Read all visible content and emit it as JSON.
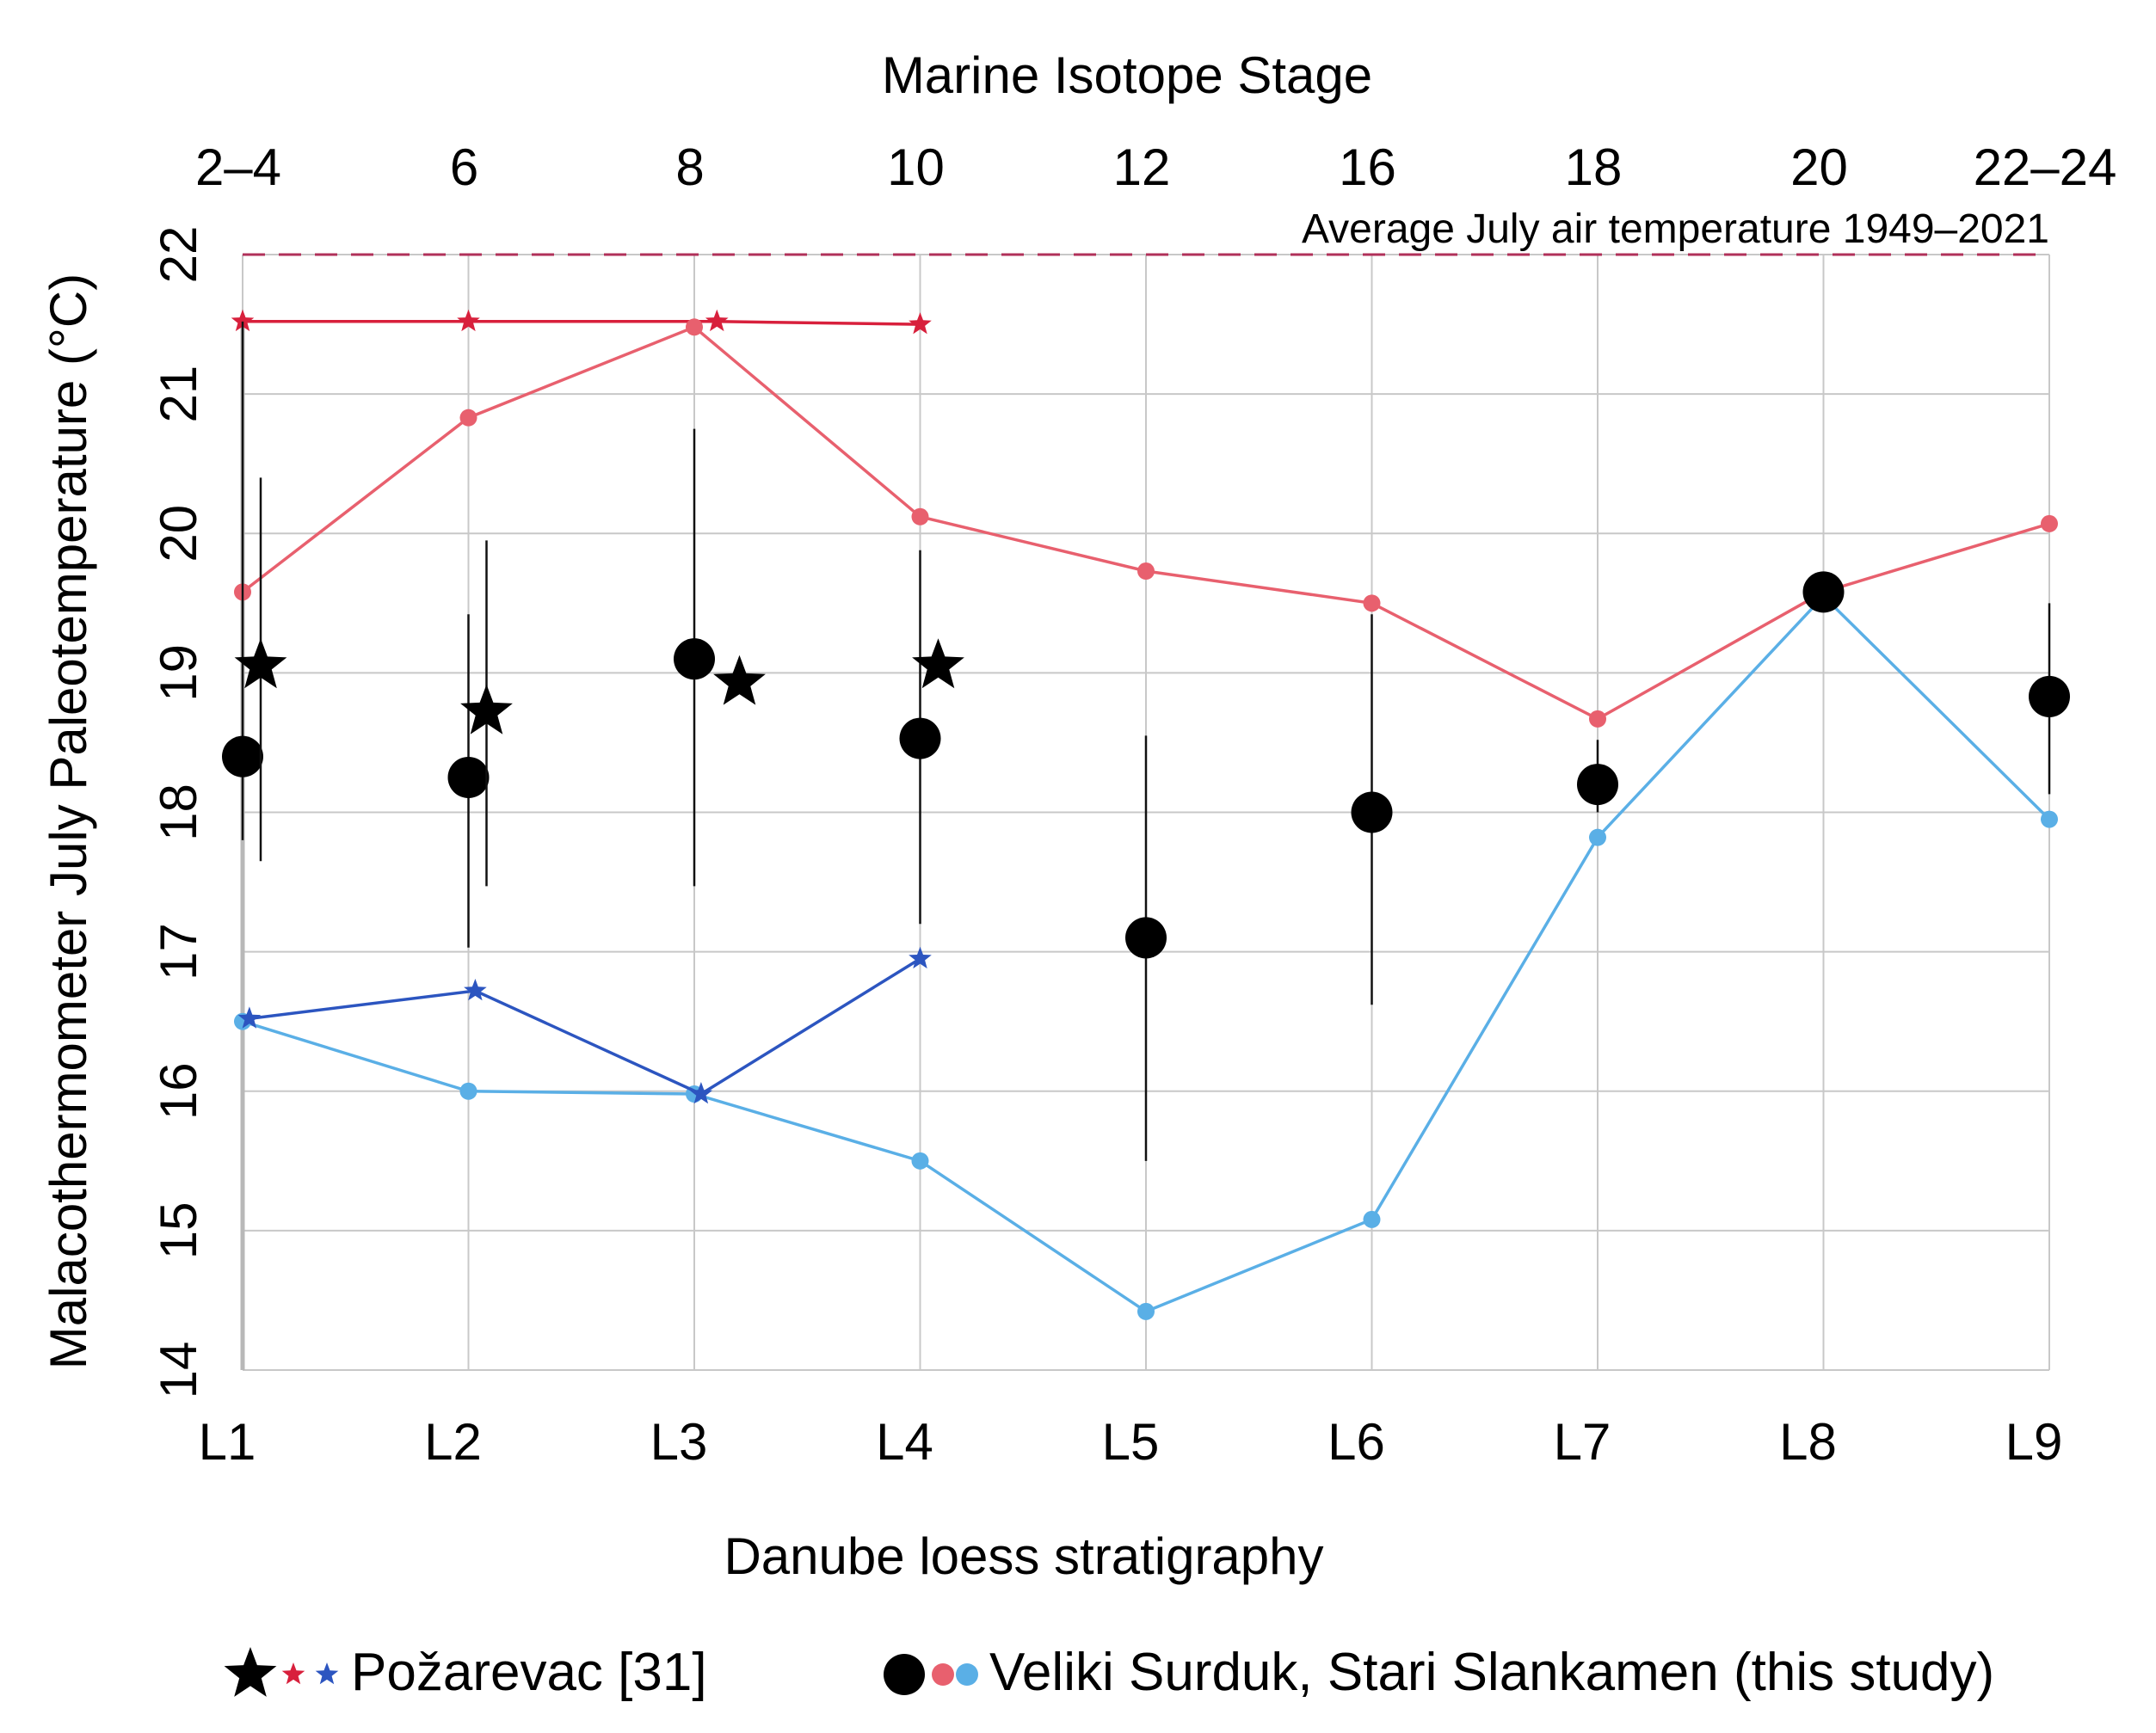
{
  "chart_data": {
    "type": "line",
    "title": "",
    "xlabel": "Danube loess stratigraphy",
    "ylabel": "Malacothermometer July Paleotemperature  (°C)",
    "top_axis_label": "Marine Isotope Stage",
    "categories": [
      "L1",
      "L2",
      "L3",
      "L4",
      "L5",
      "L6",
      "L7",
      "L8",
      "L9"
    ],
    "top_categories": [
      "2–4",
      "6",
      "8",
      "10",
      "12",
      "16",
      "18",
      "20",
      "22–24"
    ],
    "ylim": [
      14,
      22
    ],
    "yticks": [
      "14",
      "15",
      "16",
      "17",
      "18",
      "19",
      "20",
      "21",
      "22"
    ],
    "grid": true,
    "reference_line": {
      "label": "Average July air temperature 1949–2021",
      "value": 22,
      "color": "#b0305a"
    },
    "series": [
      {
        "name": "Veliki Surduk, Stari Slankamen (this study) – upper",
        "marker": "dot",
        "color": "#e8606e",
        "x": [
          0,
          1,
          2,
          3,
          4,
          5,
          6,
          7,
          8
        ],
        "values": [
          19.58,
          20.83,
          21.48,
          20.12,
          19.73,
          19.5,
          18.67,
          19.58,
          20.07
        ]
      },
      {
        "name": "Veliki Surduk, Stari Slankamen (this study) – lower",
        "marker": "dot",
        "color": "#5aafe6",
        "x": [
          0,
          1,
          2,
          3,
          4,
          5,
          6,
          7,
          8
        ],
        "values": [
          16.5,
          16.0,
          15.98,
          15.5,
          14.42,
          15.08,
          17.82,
          19.55,
          17.95
        ]
      },
      {
        "name": "Veliki Surduk, Stari Slankamen (this study) – mean",
        "marker": "big-dot",
        "color": "#000000",
        "x": [
          0,
          1,
          2,
          3,
          4,
          5,
          6,
          7,
          8
        ],
        "values": [
          18.4,
          18.25,
          19.1,
          18.53,
          17.1,
          18.0,
          18.2,
          19.58,
          18.83
        ],
        "error_low": [
          17.8,
          17.03,
          17.47,
          17.2,
          15.5,
          16.62,
          18.0,
          null,
          18.13
        ],
        "error_high": [
          21.52,
          19.42,
          20.75,
          19.88,
          18.55,
          19.42,
          18.52,
          null,
          19.5
        ]
      },
      {
        "name": "Požarevac [31] – upper",
        "marker": "star",
        "color": "#d8203c",
        "x": [
          0,
          1,
          2.1,
          3
        ],
        "values": [
          21.52,
          21.52,
          21.52,
          21.5
        ]
      },
      {
        "name": "Požarevac [31] – lower",
        "marker": "star",
        "color": "#2c55c0",
        "x": [
          0.03,
          1.03,
          2.03,
          3.0
        ],
        "values": [
          16.52,
          16.72,
          15.98,
          16.95
        ]
      },
      {
        "name": "Požarevac [31] – mean",
        "marker": "big-star",
        "color": "#000000",
        "x": [
          0.08,
          1.08,
          2.2,
          3.08
        ],
        "values": [
          19.05,
          18.72,
          18.93,
          19.05
        ],
        "error_low": [
          17.65,
          17.47,
          null,
          null
        ],
        "error_high": [
          20.4,
          19.95,
          null,
          null
        ]
      }
    ],
    "legend": [
      {
        "label": "Požarevac [31]",
        "markers": [
          "big-star",
          "red-star",
          "blue-star"
        ]
      },
      {
        "label": "Veliki Surduk, Stari Slankamen (this study)",
        "markers": [
          "big-dot",
          "red-dot",
          "blue-dot"
        ]
      }
    ],
    "legend_position": "bottom"
  }
}
